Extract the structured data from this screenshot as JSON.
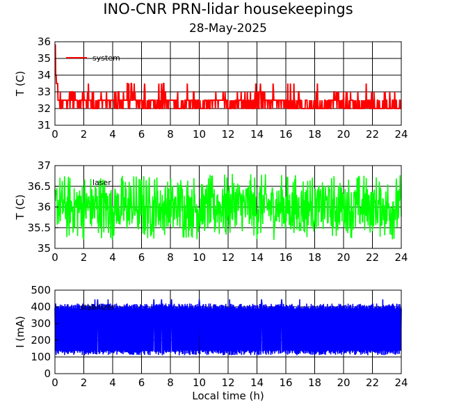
{
  "title": "INO-CNR PRN-lidar housekeepings",
  "subtitle": "28-May-2025",
  "xlabel": "Local time (h)",
  "chart_data": [
    {
      "type": "line",
      "ylabel": "T (C)",
      "xlim": [
        0,
        24
      ],
      "ylim": [
        31,
        36
      ],
      "xticks": [
        0,
        2,
        4,
        6,
        8,
        10,
        12,
        14,
        16,
        18,
        20,
        22,
        24
      ],
      "yticks": [
        31,
        32,
        33,
        34,
        35,
        36
      ],
      "grid": true,
      "legend_position": "top-left",
      "series": [
        {
          "name": "system",
          "color": "#ff0000",
          "x": [
            0,
            0.05,
            0.1,
            0.2,
            0.5,
            1.0,
            1.5,
            2.0,
            2.5,
            3.0,
            3.5,
            4.0,
            4.5,
            5.0,
            5.5,
            6.0,
            6.5,
            7.0,
            7.5,
            8.0,
            8.5,
            9.0,
            9.5,
            10.0,
            10.5,
            11.0,
            11.5,
            12.0,
            12.5,
            13.0,
            13.5,
            14.0,
            14.5,
            15.0,
            15.5,
            16.0,
            16.5,
            17.0,
            17.5,
            18.0,
            18.5,
            19.0,
            19.5,
            20.0,
            20.5,
            21.0,
            21.5,
            22.0,
            22.5,
            23.0,
            23.5,
            24.0
          ],
          "y": [
            35.8,
            34.0,
            33.5,
            32.5,
            32.5,
            33.0,
            32.5,
            32.5,
            32.0,
            32.5,
            32.5,
            33.0,
            32.5,
            33.5,
            32.5,
            32.0,
            32.5,
            32.0,
            32.5,
            32.5,
            32.0,
            32.5,
            32.5,
            32.0,
            32.5,
            32.5,
            32.5,
            32.0,
            32.5,
            32.0,
            32.0,
            33.0,
            32.5,
            32.5,
            32.5,
            32.0,
            32.0,
            32.0,
            32.0,
            32.0,
            32.0,
            32.5,
            32.5,
            32.0,
            32.5,
            32.0,
            32.0,
            32.0,
            32.0,
            32.0,
            32.0,
            32.5
          ],
          "band": {
            "low": 32.0,
            "high": 32.5,
            "spike_max": 33.5
          }
        }
      ]
    },
    {
      "type": "line",
      "ylabel": "T (C)",
      "xlim": [
        0,
        24
      ],
      "ylim": [
        35,
        37
      ],
      "xticks": [
        0,
        2,
        4,
        6,
        8,
        10,
        12,
        14,
        16,
        18,
        20,
        22,
        24
      ],
      "yticks": [
        35,
        35.5,
        36,
        36.5,
        37
      ],
      "ytick_labels": [
        "35",
        "35.5",
        "36",
        "36.5",
        "37"
      ],
      "grid": true,
      "legend_position": "top-left",
      "series": [
        {
          "name": "laser",
          "color": "#00ff00",
          "band": {
            "low": 35.2,
            "high": 36.8,
            "center": 36.0
          }
        }
      ]
    },
    {
      "type": "line",
      "ylabel": "I (mA)",
      "xlim": [
        0,
        24
      ],
      "ylim": [
        0,
        500
      ],
      "xticks": [
        0,
        2,
        4,
        6,
        8,
        10,
        12,
        14,
        16,
        18,
        20,
        22,
        24
      ],
      "yticks": [
        0,
        100,
        200,
        300,
        400,
        500
      ],
      "grid": true,
      "legend_position": "top-left",
      "series": [
        {
          "name": "stabilizer",
          "color": "#0000ff",
          "band": {
            "low": 110,
            "high": 420,
            "spike_max": 445
          }
        }
      ]
    }
  ]
}
